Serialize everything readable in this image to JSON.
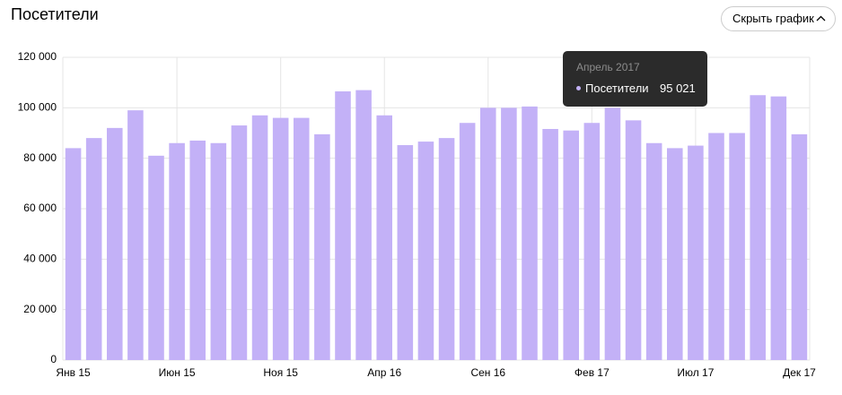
{
  "header": {
    "title": "Посетители",
    "button": "Скрыть график"
  },
  "tooltip": {
    "title": "Апрель 2017",
    "label": "Посетители",
    "value": "95 021"
  },
  "chart_data": {
    "type": "bar",
    "categories": [
      "Янв 15",
      null,
      null,
      null,
      null,
      "Июн 15",
      null,
      null,
      null,
      null,
      "Ноя 15",
      null,
      null,
      null,
      null,
      "Апр 16",
      null,
      null,
      null,
      null,
      "Сен 16",
      null,
      null,
      null,
      null,
      "Фев 17",
      null,
      null,
      null,
      null,
      "Июл 17",
      null,
      null,
      null,
      null,
      "Дек 17"
    ],
    "values": [
      84000,
      88000,
      92000,
      99000,
      81000,
      86000,
      87000,
      86000,
      93000,
      97000,
      96000,
      96000,
      89500,
      106500,
      107000,
      97000,
      85200,
      86600,
      88000,
      94000,
      100000,
      100000,
      100500,
      91600,
      91000,
      94000,
      100000,
      95021,
      86000,
      84000,
      85000,
      90000,
      90000,
      105000,
      104500,
      89500
    ],
    "color": "#c3b1f7",
    "ylim": [
      0,
      120000
    ],
    "yticks": [
      0,
      {
        "value": 20000,
        "label": "20 000"
      },
      {
        "value": 40000,
        "label": "40 000"
      },
      {
        "value": 60000,
        "label": "60 000"
      },
      {
        "value": 80000,
        "label": "80 000"
      },
      {
        "value": 100000,
        "label": "100 000"
      },
      {
        "value": 120000,
        "label": "120 000"
      }
    ],
    "grid": true
  }
}
